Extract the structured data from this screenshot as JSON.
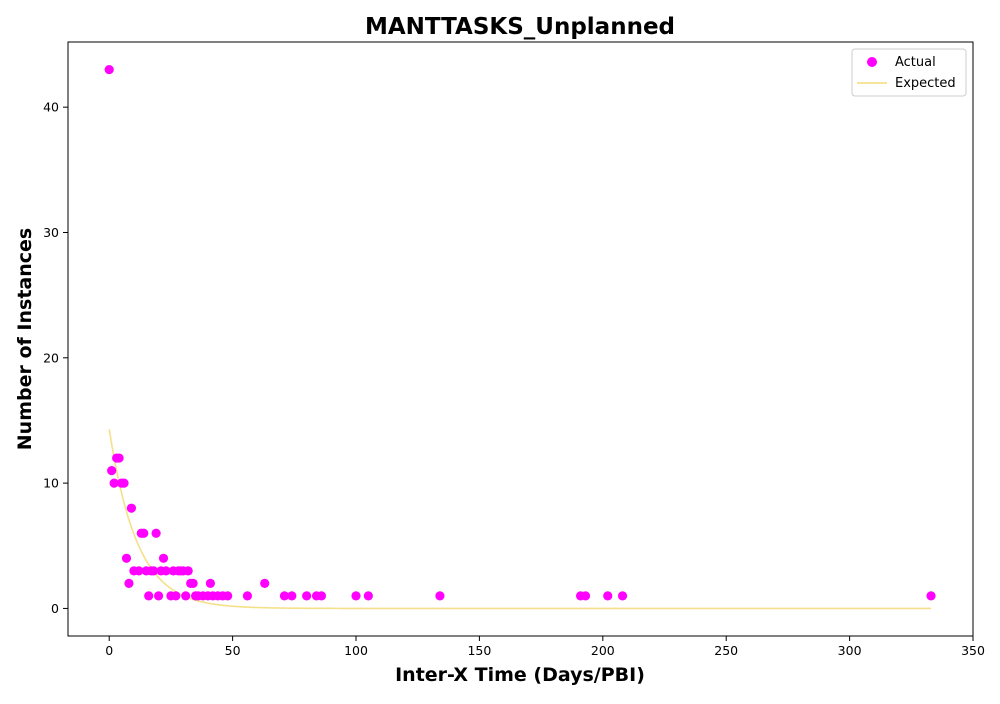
{
  "chart_data": {
    "type": "scatter",
    "title": "MANTTASKS_Unplanned",
    "xlabel": "Inter-X Time (Days/PBI)",
    "ylabel": "Number of Instances",
    "xlim": [
      -16.7,
      350
    ],
    "ylim": [
      -2.2,
      45.2
    ],
    "x_ticks": [
      0,
      50,
      100,
      150,
      200,
      250,
      300,
      350
    ],
    "y_ticks": [
      0,
      10,
      20,
      30,
      40
    ],
    "grid": false,
    "legend_position": "top-right",
    "series": [
      {
        "name": "Actual",
        "kind": "scatter",
        "color": "#ff00ff",
        "points": [
          [
            0,
            43
          ],
          [
            1,
            11
          ],
          [
            2,
            10
          ],
          [
            3,
            12
          ],
          [
            4,
            12
          ],
          [
            5,
            10
          ],
          [
            6,
            10
          ],
          [
            7,
            4
          ],
          [
            8,
            2
          ],
          [
            9,
            8
          ],
          [
            10,
            3
          ],
          [
            12,
            3
          ],
          [
            13,
            6
          ],
          [
            14,
            6
          ],
          [
            15,
            3
          ],
          [
            16,
            1
          ],
          [
            17,
            3
          ],
          [
            18,
            3
          ],
          [
            19,
            6
          ],
          [
            20,
            1
          ],
          [
            21,
            3
          ],
          [
            22,
            4
          ],
          [
            23,
            3
          ],
          [
            25,
            1
          ],
          [
            26,
            3
          ],
          [
            27,
            1
          ],
          [
            28,
            3
          ],
          [
            29,
            3
          ],
          [
            30,
            3
          ],
          [
            31,
            1
          ],
          [
            32,
            3
          ],
          [
            33,
            2
          ],
          [
            34,
            2
          ],
          [
            35,
            1
          ],
          [
            36,
            1
          ],
          [
            38,
            1
          ],
          [
            40,
            1
          ],
          [
            41,
            2
          ],
          [
            42,
            1
          ],
          [
            44,
            1
          ],
          [
            46,
            1
          ],
          [
            48,
            1
          ],
          [
            56,
            1
          ],
          [
            63,
            2
          ],
          [
            71,
            1
          ],
          [
            74,
            1
          ],
          [
            80,
            1
          ],
          [
            84,
            1
          ],
          [
            86,
            1
          ],
          [
            100,
            1
          ],
          [
            105,
            1
          ],
          [
            134,
            1
          ],
          [
            191,
            1
          ],
          [
            193,
            1
          ],
          [
            202,
            1
          ],
          [
            208,
            1
          ],
          [
            333,
            1
          ]
        ]
      },
      {
        "name": "Expected",
        "kind": "line",
        "color": "#f5e08a",
        "model": "exponential",
        "amplitude": 14.3,
        "rate": 0.088,
        "x_range": [
          0,
          333
        ]
      }
    ]
  }
}
